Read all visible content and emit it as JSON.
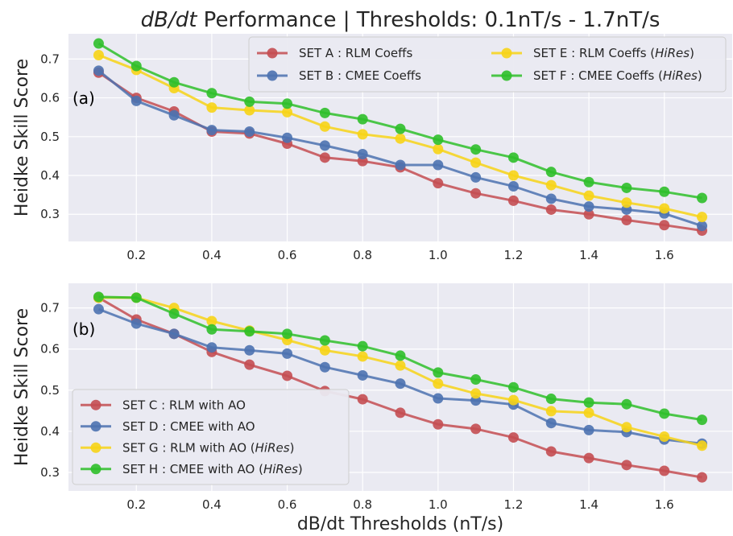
{
  "title": {
    "prefix": "dB/dt",
    "rest": " Performance | Thresholds: 0.1nT/s - 1.7nT/s"
  },
  "xlabel": "dB/dt Thresholds (nT/s)",
  "colors": {
    "background": "#eaeaf2",
    "grid": "#ffffff",
    "red": "#c44e52",
    "blue": "#4c72b0",
    "yellow": "#f7d417",
    "green": "#2fbf2a"
  },
  "chart_data": [
    {
      "type": "line",
      "panel_label": "(a)",
      "ylabel": "Heidke Skill Score",
      "x": [
        0.1,
        0.2,
        0.3,
        0.4,
        0.5,
        0.6,
        0.7,
        0.8,
        0.9,
        1.0,
        1.1,
        1.2,
        1.3,
        1.4,
        1.5,
        1.6,
        1.7
      ],
      "xticks": [
        "0.2",
        "0.4",
        "0.6",
        "0.8",
        "1.0",
        "1.2",
        "1.4",
        "1.6"
      ],
      "xtick_values": [
        0.2,
        0.4,
        0.6,
        0.8,
        1.0,
        1.2,
        1.4,
        1.6
      ],
      "yticks": [
        "0.3",
        "0.4",
        "0.5",
        "0.6",
        "0.7"
      ],
      "ytick_values": [
        0.3,
        0.4,
        0.5,
        0.6,
        0.7
      ],
      "xlim": [
        0.02,
        1.78
      ],
      "ylim": [
        0.23,
        0.765
      ],
      "legend": {
        "placement": "top-right",
        "columns": 2
      },
      "series": [
        {
          "name_main": "SET A : RLM Coeffs",
          "name_italic": "",
          "name_tail": "",
          "color": "#c44e52",
          "values": [
            0.665,
            0.6,
            0.565,
            0.513,
            0.508,
            0.482,
            0.446,
            0.437,
            0.421,
            0.38,
            0.354,
            0.335,
            0.312,
            0.3,
            0.285,
            0.272,
            0.258
          ]
        },
        {
          "name_main": "SET B : CMEE Coeffs",
          "name_italic": "",
          "name_tail": "",
          "color": "#4c72b0",
          "values": [
            0.67,
            0.592,
            0.555,
            0.517,
            0.513,
            0.497,
            0.477,
            0.455,
            0.427,
            0.427,
            0.395,
            0.372,
            0.34,
            0.32,
            0.312,
            0.302,
            0.27
          ]
        },
        {
          "name_main": "SET E : RLM Coeffs (",
          "name_italic": "HiRes",
          "name_tail": ")",
          "color": "#f7d417",
          "values": [
            0.71,
            0.672,
            0.625,
            0.575,
            0.568,
            0.563,
            0.526,
            0.506,
            0.495,
            0.468,
            0.433,
            0.4,
            0.375,
            0.348,
            0.33,
            0.315,
            0.293
          ]
        },
        {
          "name_main": "SET F : CMEE Coeffs (",
          "name_italic": "HiRes",
          "name_tail": ")",
          "color": "#2fbf2a",
          "values": [
            0.74,
            0.682,
            0.64,
            0.612,
            0.59,
            0.585,
            0.561,
            0.545,
            0.52,
            0.492,
            0.467,
            0.446,
            0.409,
            0.383,
            0.368,
            0.358,
            0.342
          ]
        }
      ]
    },
    {
      "type": "line",
      "panel_label": "(b)",
      "ylabel": "Heidke Skill Score",
      "x": [
        0.1,
        0.2,
        0.3,
        0.4,
        0.5,
        0.6,
        0.7,
        0.8,
        0.9,
        1.0,
        1.1,
        1.2,
        1.3,
        1.4,
        1.5,
        1.6,
        1.7
      ],
      "xticks": [
        "0.2",
        "0.4",
        "0.6",
        "0.8",
        "1.0",
        "1.2",
        "1.4",
        "1.6"
      ],
      "xtick_values": [
        0.2,
        0.4,
        0.6,
        0.8,
        1.0,
        1.2,
        1.4,
        1.6
      ],
      "yticks": [
        "0.3",
        "0.4",
        "0.5",
        "0.6",
        "0.7"
      ],
      "ytick_values": [
        0.3,
        0.4,
        0.5,
        0.6,
        0.7
      ],
      "xlim": [
        0.02,
        1.78
      ],
      "ylim": [
        0.255,
        0.76
      ],
      "legend": {
        "placement": "bottom-left",
        "columns": 1
      },
      "series": [
        {
          "name_main": "SET C : RLM with AO",
          "name_italic": "",
          "name_tail": "",
          "color": "#c44e52",
          "values": [
            0.725,
            0.672,
            0.637,
            0.593,
            0.562,
            0.535,
            0.498,
            0.478,
            0.445,
            0.417,
            0.406,
            0.385,
            0.351,
            0.335,
            0.318,
            0.304,
            0.288
          ]
        },
        {
          "name_main": "SET D : CMEE with AO",
          "name_italic": "",
          "name_tail": "",
          "color": "#4c72b0",
          "values": [
            0.697,
            0.662,
            0.637,
            0.604,
            0.597,
            0.589,
            0.556,
            0.536,
            0.516,
            0.48,
            0.475,
            0.465,
            0.42,
            0.403,
            0.398,
            0.38,
            0.37
          ]
        },
        {
          "name_main": "SET G : RLM with AO (",
          "name_italic": "HiRes",
          "name_tail": ")",
          "color": "#f7d417",
          "values": [
            0.725,
            0.725,
            0.7,
            0.668,
            0.645,
            0.622,
            0.597,
            0.582,
            0.56,
            0.516,
            0.492,
            0.476,
            0.449,
            0.445,
            0.41,
            0.387,
            0.365
          ]
        },
        {
          "name_main": "SET H : CMEE with AO (",
          "name_italic": "HiRes",
          "name_tail": ")",
          "color": "#2fbf2a",
          "values": [
            0.727,
            0.725,
            0.686,
            0.648,
            0.643,
            0.637,
            0.621,
            0.607,
            0.584,
            0.543,
            0.526,
            0.507,
            0.479,
            0.47,
            0.466,
            0.443,
            0.428
          ]
        }
      ]
    }
  ]
}
